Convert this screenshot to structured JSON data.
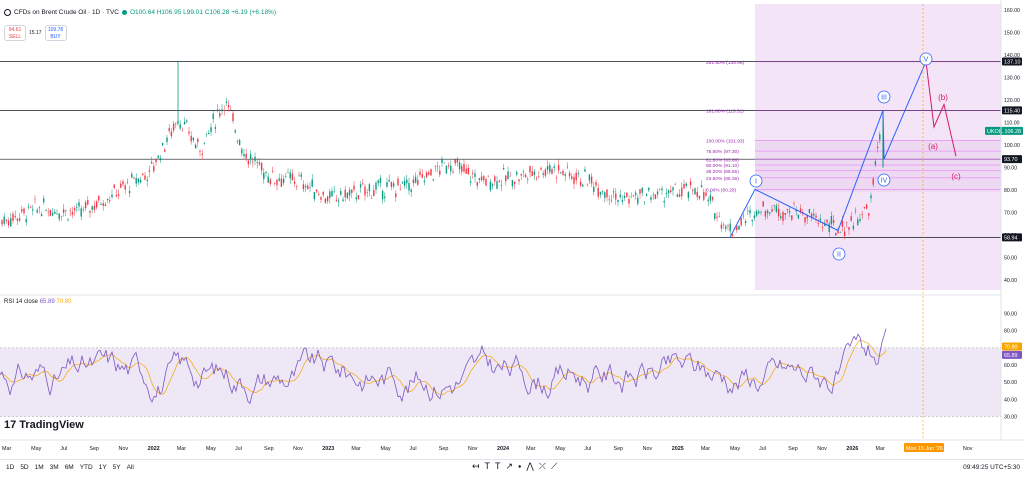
{
  "header": {
    "title": "CFDs on Brent Crude Oil · 1D · TVC",
    "ohlc": "O100.64 H106.95 L99.01 C106.28 +6.19 (+6.18%)"
  },
  "trade": {
    "sell_price": "94.61",
    "sell_label": "SELL",
    "spread": "15.17",
    "buy_price": "109.78",
    "buy_label": "BUY"
  },
  "price_axis": {
    "ticks": [
      "160.00",
      "150.00",
      "140.00",
      "130.00",
      "120.00",
      "110.00",
      "100.00",
      "90.00",
      "80.00",
      "70.00",
      "60.00",
      "50.00",
      "40.00"
    ],
    "ticks_values": [
      160,
      150,
      140,
      130,
      120,
      110,
      100,
      90,
      80,
      70,
      60,
      50,
      40
    ],
    "labels": [
      {
        "text": "137.10",
        "value": 137.1,
        "color": "#131722"
      },
      {
        "text": "115.40",
        "value": 115.4,
        "color": "#131722"
      },
      {
        "text": "UKOIL 106.28",
        "value": 106.28,
        "color": "#089981"
      },
      {
        "text": "93.70",
        "value": 93.7,
        "color": "#131722"
      },
      {
        "text": "58.94",
        "value": 58.94,
        "color": "#131722"
      }
    ]
  },
  "fib_levels": [
    {
      "label": "261.80% (136.96)",
      "value": 136.96
    },
    {
      "label": "161.80% (115.31)",
      "value": 115.31
    },
    {
      "label": "100.00% (101.93)",
      "value": 101.93
    },
    {
      "label": "78.60% (97.30)",
      "value": 97.3
    },
    {
      "label": "61.80% (93.66)",
      "value": 93.66
    },
    {
      "label": "50.00% (91.10)",
      "value": 91.1
    },
    {
      "label": "38.20% (88.55)",
      "value": 88.55
    },
    {
      "label": "23.60% (85.39)",
      "value": 85.39
    },
    {
      "label": "0.00% (80.28)",
      "value": 80.28
    }
  ],
  "horizontal_lines": [
    137.1,
    115.4,
    93.7,
    58.94
  ],
  "wave_labels": {
    "i": "I",
    "ii": "II",
    "iii": "III",
    "iv": "IV",
    "v": "V",
    "a": "(a)",
    "b": "(b)",
    "c": "(c)"
  },
  "rsi": {
    "label": "RSI 14 close",
    "value": "65.89",
    "ma_value": "70.80",
    "ticks": [
      "90.00",
      "80.00",
      "70.00",
      "60.00",
      "50.00",
      "40.00",
      "30.00"
    ],
    "ticks_values": [
      90,
      80,
      70,
      60,
      50,
      40,
      30
    ],
    "label_values": [
      70.8,
      65.89
    ],
    "band_upper": 70,
    "band_lower": 30
  },
  "time_axis": {
    "labels": [
      "Mar",
      "May",
      "Jul",
      "Sep",
      "Nov",
      "2022",
      "Mar",
      "May",
      "Jul",
      "Sep",
      "Nov",
      "2023",
      "Mar",
      "May",
      "Jul",
      "Sep",
      "Nov",
      "2024",
      "Mar",
      "May",
      "Jul",
      "Sep",
      "Nov",
      "2025",
      "Mar",
      "May",
      "Jul",
      "Sep",
      "Nov",
      "2026",
      "Mar",
      "Ma",
      "Sep",
      "Nov"
    ],
    "highlight": "Mon 15 Jun '26"
  },
  "brand": {
    "name": "TradingView",
    "mark": "17"
  },
  "timeframes": [
    "1D",
    "5D",
    "1M",
    "3M",
    "6M",
    "YTD",
    "1Y",
    "5Y",
    "All"
  ],
  "tools_bar": [
    "↤",
    "T",
    "T",
    "↗",
    "⬩",
    "⋀",
    "⤫",
    "⟋"
  ],
  "clock": "09:49:25 UTC+5:30",
  "colors": {
    "up": "#089981",
    "down": "#f23645",
    "price_line": "#131722",
    "projection_zone": "#f3e5f7",
    "wave_blue": "#2962ff",
    "wave_pink": "#d81b60",
    "rsi_line": "#7e57c2",
    "rsi_ma": "#f7a600",
    "rsi_band": "#ede7f6",
    "fib": "#e040fb",
    "timeline_highlight": "#ff9800"
  }
}
